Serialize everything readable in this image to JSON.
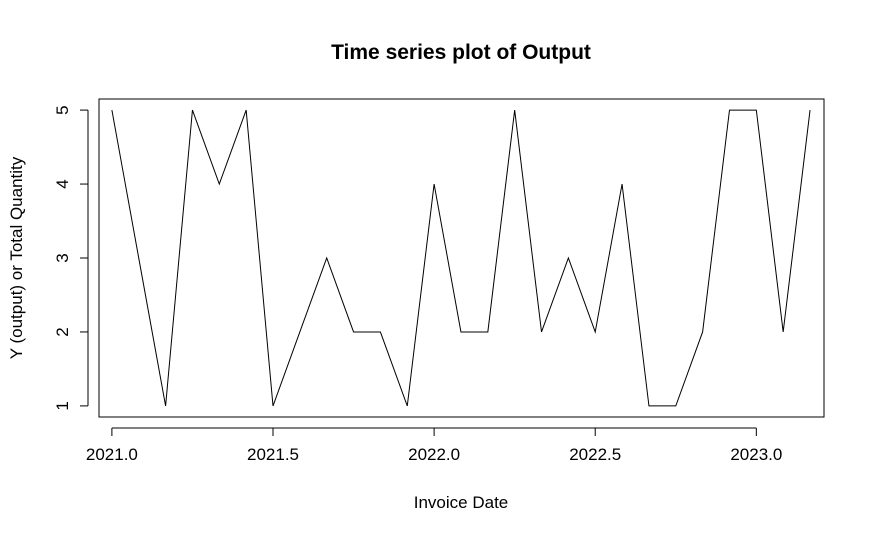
{
  "chart_data": {
    "type": "line",
    "title": "Time series plot of Output",
    "xlabel": "Invoice Date",
    "ylabel": "Y (output) or Total Quantity",
    "xlim": [
      2020.96,
      2023.21
    ],
    "ylim": [
      0.85,
      5.15
    ],
    "xticks": [
      2021.0,
      2021.5,
      2022.0,
      2022.5,
      2023.0
    ],
    "xtick_labels": [
      "2021.0",
      "2021.5",
      "2022.0",
      "2022.5",
      "2023.0"
    ],
    "yticks": [
      1,
      2,
      3,
      4,
      5
    ],
    "ytick_labels": [
      "1",
      "2",
      "3",
      "4",
      "5"
    ],
    "grid": false,
    "legend": "none",
    "series": [
      {
        "color": "#000000",
        "x": [
          2021.0,
          2021.0833,
          2021.1667,
          2021.25,
          2021.3333,
          2021.4167,
          2021.5,
          2021.5833,
          2021.6667,
          2021.75,
          2021.8333,
          2021.9167,
          2022.0,
          2022.0833,
          2022.1667,
          2022.25,
          2022.3333,
          2022.4167,
          2022.5,
          2022.5833,
          2022.6667,
          2022.75,
          2022.8333,
          2022.9167,
          2023.0,
          2023.0833,
          2023.1667
        ],
        "y": [
          5,
          3,
          1,
          5,
          4,
          5,
          1,
          2,
          3,
          2,
          2,
          1,
          4,
          2,
          2,
          5,
          2,
          3,
          2,
          4,
          1,
          1,
          2,
          5,
          5,
          2,
          5
        ]
      }
    ]
  }
}
